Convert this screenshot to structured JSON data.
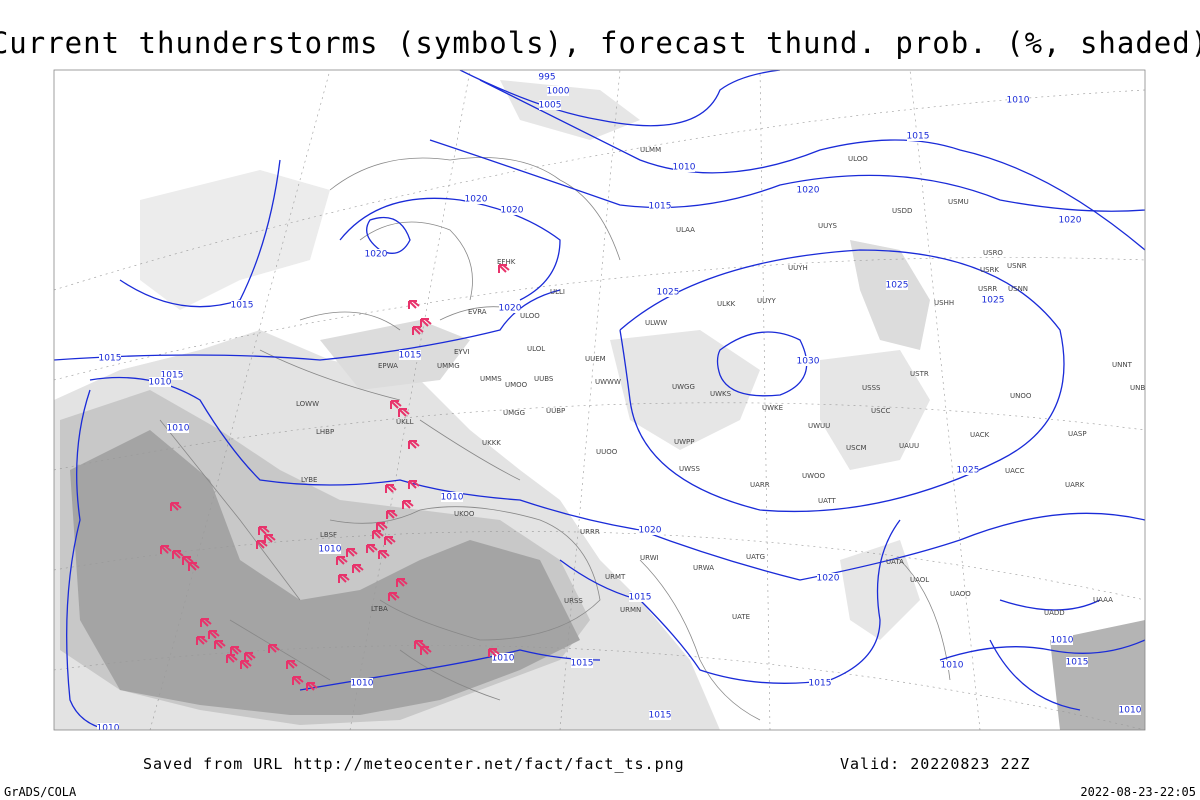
{
  "title": "Current thunderstorms (symbols), forecast thund. prob. (%, shaded)",
  "footer": {
    "saved": "Saved from URL http://meteocenter.net/fact/fact_ts.png",
    "valid": "Valid: 20220823 22Z",
    "software": "GrADS/COLA",
    "timestamp": "2022-08-23-22:05"
  },
  "isobar_labels": [
    "995",
    "1000",
    "1005",
    "1010",
    "1015",
    "1010",
    "1015",
    "1020",
    "1020",
    "1020",
    "1020",
    "1020",
    "1015",
    "1020",
    "1025",
    "1025",
    "1025",
    "1030",
    "1015",
    "1015",
    "1010",
    "1015",
    "1010",
    "1010",
    "1025",
    "1010",
    "1020",
    "1020",
    "1015",
    "1015",
    "1010",
    "1010",
    "1015",
    "1010",
    "1010",
    "1015",
    "1015",
    "1010",
    "1010"
  ],
  "stations": [
    "ULMM",
    "ULOO",
    "USDD",
    "USMU",
    "UUYS",
    "ULAA",
    "USRO",
    "USRK",
    "USNR",
    "USRR",
    "USNN",
    "UUYH",
    "USHH",
    "EFHK",
    "ULLI",
    "ULKK",
    "UUYY",
    "ULOO",
    "EVRA",
    "ULWW",
    "ULOL",
    "EYVI",
    "UUEM",
    "EPWA",
    "UMMG",
    "UMMS",
    "UMOO",
    "UUBS",
    "UWWW",
    "UWGG",
    "UWKS",
    "USSS",
    "USTR",
    "UNNT",
    "UNBB",
    "UNOO",
    "LOWW",
    "UMGG",
    "UUBP",
    "UWKE",
    "USCC",
    "UACK",
    "UASP",
    "UKLL",
    "LHBP",
    "UWUU",
    "UKKK",
    "UWPP",
    "USCM",
    "UAUU",
    "UUOO",
    "LYBE",
    "UWSS",
    "UWOO",
    "UACC",
    "UARR",
    "UATT",
    "UARK",
    "LBSF",
    "UKOO",
    "URRR",
    "URWI",
    "UATG",
    "UATA",
    "UAOL",
    "LTBA",
    "URMT",
    "URWA",
    "URSS",
    "URMN",
    "UATE",
    "UAOO",
    "UADD",
    "UAAA"
  ]
}
